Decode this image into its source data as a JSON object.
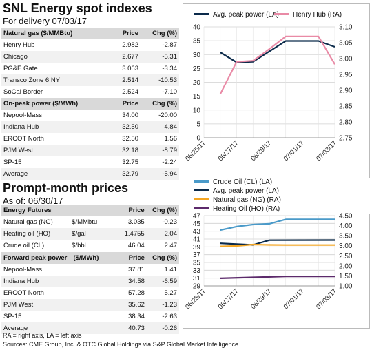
{
  "spot": {
    "title": "SNL Energy spot indexes",
    "subtitle": "For delivery 07/03/17",
    "gas_header": [
      "Natural gas ($/MMBtu)",
      "Price",
      "Chg (%)"
    ],
    "gas_rows": [
      [
        "Henry Hub",
        "2.982",
        "-2.87"
      ],
      [
        "Chicago",
        "2.677",
        "-5.31"
      ],
      [
        "PG&E Gate",
        "3.063",
        "-3.34"
      ],
      [
        "Transco Zone 6 NY",
        "2.514",
        "-10.53"
      ],
      [
        "SoCal Border",
        "2.524",
        "-7.10"
      ]
    ],
    "power_header": [
      "On-peak power ($/MWh)",
      "Price",
      "Chg (%)"
    ],
    "power_rows": [
      [
        "Nepool-Mass",
        "34.00",
        "-20.00"
      ],
      [
        "Indiana Hub",
        "32.50",
        "4.84"
      ],
      [
        "ERCOT North",
        "32.50",
        "1.56"
      ],
      [
        "PJM West",
        "32.18",
        "-8.79"
      ],
      [
        "SP-15",
        "32.75",
        "-2.24"
      ],
      [
        "Average",
        "32.79",
        "-5.94"
      ]
    ]
  },
  "prompt": {
    "title": "Prompt-month prices",
    "subtitle": "As of: 06/30/17",
    "energy_header": [
      "Energy Futures",
      "",
      "Price",
      "Chg (%)"
    ],
    "energy_rows": [
      [
        "Natural gas (NG)",
        "$/MMbtu",
        "3.035",
        "-0.23"
      ],
      [
        "Heating oil (HO)",
        "$/gal",
        "1.4755",
        "2.04"
      ],
      [
        "Crude oil (CL)",
        "$/bbl",
        "46.04",
        "2.47"
      ]
    ],
    "forward_header": [
      "Forward peak power",
      "($/MWh)",
      "Price",
      "Chg (%)"
    ],
    "forward_rows": [
      [
        "Nepool-Mass",
        "",
        "37.81",
        "1.41"
      ],
      [
        "Indiana Hub",
        "",
        "34.58",
        "-6.59"
      ],
      [
        "ERCOT North",
        "",
        "57.28",
        "5.27"
      ],
      [
        "PJM West",
        "",
        "35.62",
        "-1.23"
      ],
      [
        "SP-15",
        "",
        "38.34",
        "-2.63"
      ],
      [
        "Average",
        "",
        "40.73",
        "-0.26"
      ]
    ]
  },
  "footer": {
    "note": "RA = right axis, LA = left axis",
    "source": "Sources: CME Group, Inc. & OTC Global Holdings via S&P Global Market Intelligence"
  },
  "chart_data": [
    {
      "type": "line",
      "x": [
        "06/25/17",
        "06/26/17",
        "06/27/17",
        "06/28/17",
        "06/29/17",
        "06/30/17",
        "07/01/17",
        "07/02/17",
        "07/03/17"
      ],
      "x_tick_labels": [
        "06/25/17",
        "06/27/17",
        "06/29/17",
        "07/01/17",
        "07/03/17"
      ],
      "left_ylim": [
        0,
        40
      ],
      "left_ticks": [
        "0",
        "5",
        "10",
        "15",
        "20",
        "25",
        "30",
        "35",
        "40"
      ],
      "right_ylim": [
        2.75,
        3.1
      ],
      "right_ticks": [
        "2.75",
        "2.80",
        "2.85",
        "2.90",
        "2.95",
        "3.00",
        "3.05",
        "3.10"
      ],
      "grid": true,
      "legend_position": "top",
      "series": [
        {
          "name": "Avg. peak power (LA)",
          "axis": "left",
          "color": "#0b2a4a",
          "points": [
            [
              "06/26/17",
              30.8
            ],
            [
              "06/27/17",
              27.2
            ],
            [
              "06/28/17",
              27.4
            ],
            [
              "06/30/17",
              34.9
            ],
            [
              "07/02/17",
              34.9
            ],
            [
              "07/03/17",
              32.8
            ]
          ]
        },
        {
          "name": "Henry Hub (RA)",
          "axis": "right",
          "color": "#e98aa6",
          "points": [
            [
              "06/26/17",
              2.888
            ],
            [
              "06/27/17",
              2.99
            ],
            [
              "06/28/17",
              2.993
            ],
            [
              "06/29/17",
              3.03
            ],
            [
              "06/30/17",
              3.07
            ],
            [
              "07/02/17",
              3.07
            ],
            [
              "07/03/17",
              2.982
            ]
          ]
        }
      ]
    },
    {
      "type": "line",
      "x": [
        "06/25/17",
        "06/26/17",
        "06/27/17",
        "06/28/17",
        "06/29/17",
        "06/30/17",
        "07/01/17",
        "07/02/17",
        "07/03/17"
      ],
      "x_tick_labels": [
        "06/25/17",
        "06/27/17",
        "06/29/17",
        "07/01/17",
        "07/03/17"
      ],
      "left_ylim": [
        29,
        47
      ],
      "left_ticks": [
        "29",
        "31",
        "33",
        "35",
        "37",
        "39",
        "41",
        "43",
        "45",
        "47"
      ],
      "right_ylim": [
        1.0,
        4.5
      ],
      "right_ticks": [
        "1.00",
        "1.50",
        "2.00",
        "2.50",
        "3.00",
        "3.50",
        "4.00",
        "4.50"
      ],
      "grid": true,
      "legend_position": "top",
      "series": [
        {
          "name": "Crude Oil (CL) (LA)",
          "axis": "left",
          "color": "#4a9ac9",
          "points": [
            [
              "06/26/17",
              43.3
            ],
            [
              "06/27/17",
              44.2
            ],
            [
              "06/28/17",
              44.7
            ],
            [
              "06/29/17",
              44.9
            ],
            [
              "06/30/17",
              46.04
            ],
            [
              "07/02/17",
              46.04
            ],
            [
              "07/03/17",
              46.04
            ]
          ]
        },
        {
          "name": "Avg. peak power (LA)",
          "axis": "left",
          "color": "#0b2a4a",
          "points": [
            [
              "06/26/17",
              39.9
            ],
            [
              "06/28/17",
              39.5
            ],
            [
              "06/29/17",
              40.7
            ],
            [
              "07/03/17",
              40.73
            ]
          ]
        },
        {
          "name": "Natural gas (NG) (RA)",
          "axis": "right",
          "color": "#f4a623",
          "points": [
            [
              "06/26/17",
              2.97
            ],
            [
              "06/27/17",
              2.99
            ],
            [
              "06/28/17",
              3.06
            ],
            [
              "06/29/17",
              3.04
            ],
            [
              "06/30/17",
              3.035
            ],
            [
              "07/03/17",
              3.035
            ]
          ]
        },
        {
          "name": "Heating Oil (HO) (RA)",
          "axis": "right",
          "color": "#5c2a6b",
          "points": [
            [
              "06/26/17",
              1.38
            ],
            [
              "06/28/17",
              1.43
            ],
            [
              "06/30/17",
              1.4755
            ],
            [
              "07/03/17",
              1.4755
            ]
          ]
        }
      ]
    }
  ]
}
